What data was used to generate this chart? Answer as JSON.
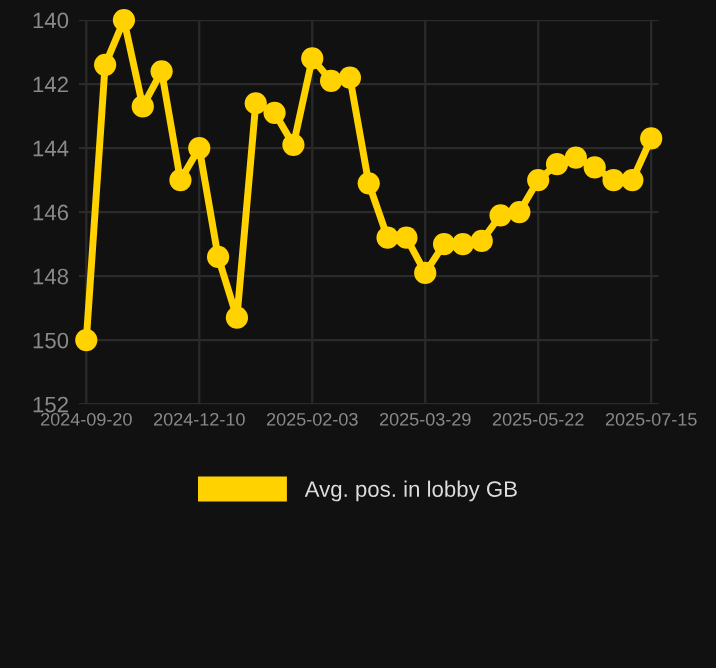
{
  "chart_data": {
    "type": "line",
    "categories": [
      "2024-09-20",
      null,
      null,
      null,
      null,
      null,
      "2024-12-10",
      null,
      null,
      null,
      null,
      null,
      "2025-02-03",
      null,
      null,
      null,
      null,
      null,
      "2025-03-29",
      null,
      null,
      null,
      null,
      null,
      "2025-05-22",
      null,
      null,
      null,
      null,
      null,
      "2025-07-15"
    ],
    "series": [
      {
        "name": "Avg. pos. in lobby GB",
        "color": "#ffd200",
        "values": [
          150.0,
          141.4,
          140.0,
          142.7,
          141.6,
          145.0,
          144.0,
          147.4,
          149.3,
          142.6,
          142.9,
          143.9,
          141.2,
          141.9,
          141.8,
          145.1,
          146.8,
          146.8,
          147.9,
          147.0,
          147.0,
          146.9,
          146.1,
          146.0,
          145.0,
          144.5,
          144.3,
          144.6,
          145.0,
          145.0,
          143.7
        ]
      }
    ],
    "ylim": [
      152,
      140
    ],
    "yticks": [
      140,
      142,
      144,
      146,
      148,
      150,
      152
    ],
    "grid": true,
    "legend": "bottom",
    "marker": "circle",
    "line_style": "solid"
  }
}
